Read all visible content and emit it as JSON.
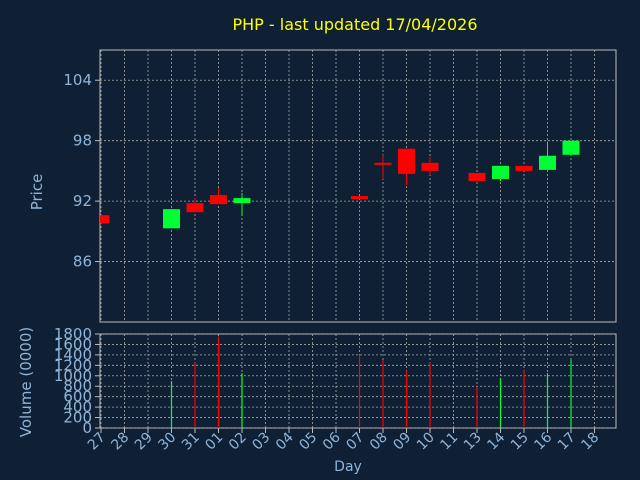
{
  "title": "PHP - last updated 17/04/2026",
  "colors": {
    "background": "#0f2035",
    "title": "#ffff00",
    "axis_text": "#8fb4d8",
    "axis_label": "#8fb4d8",
    "grid": "#aaaaaa",
    "frame": "#bbbbbb",
    "up": "#00ff33",
    "down": "#ff0000"
  },
  "chart_data": [
    {
      "type": "candlestick",
      "ylabel": "Price",
      "ylim": [
        80,
        107
      ],
      "yticks": [
        86,
        92,
        98,
        104
      ],
      "grid": true,
      "categories": [
        "27",
        "28",
        "29",
        "30",
        "31",
        "01",
        "02",
        "03",
        "04",
        "05",
        "06",
        "07",
        "08",
        "09",
        "10",
        "11",
        "13",
        "14",
        "15",
        "16",
        "17",
        "18"
      ],
      "candles": [
        {
          "x": "27",
          "open": 90.6,
          "high": 90.6,
          "low": 89.8,
          "close": 89.8
        },
        {
          "x": "30",
          "open": 89.3,
          "high": 91.2,
          "low": 89.3,
          "close": 91.2
        },
        {
          "x": "31",
          "open": 91.8,
          "high": 92.3,
          "low": 90.9,
          "close": 90.9
        },
        {
          "x": "01",
          "open": 92.6,
          "high": 93.3,
          "low": 91.7,
          "close": 91.7
        },
        {
          "x": "02",
          "open": 91.8,
          "high": 92.8,
          "low": 90.6,
          "close": 92.3
        },
        {
          "x": "07",
          "open": 92.5,
          "high": 92.5,
          "low": 92.2,
          "close": 92.2
        },
        {
          "x": "08",
          "open": 95.8,
          "high": 96.6,
          "low": 94.2,
          "close": 95.6
        },
        {
          "x": "09",
          "open": 97.2,
          "high": 97.2,
          "low": 93.6,
          "close": 94.7
        },
        {
          "x": "10",
          "open": 95.8,
          "high": 96.4,
          "low": 94.6,
          "close": 95.0
        },
        {
          "x": "13",
          "open": 94.8,
          "high": 94.8,
          "low": 94.0,
          "close": 94.0
        },
        {
          "x": "14",
          "open": 94.2,
          "high": 95.5,
          "low": 94.0,
          "close": 95.5
        },
        {
          "x": "15",
          "open": 95.5,
          "high": 95.5,
          "low": 95.0,
          "close": 95.0
        },
        {
          "x": "16",
          "open": 95.1,
          "high": 97.9,
          "low": 95.1,
          "close": 96.5
        },
        {
          "x": "17",
          "open": 96.6,
          "high": 98.0,
          "low": 96.6,
          "close": 98.0
        }
      ]
    },
    {
      "type": "bar",
      "xlabel": "Day",
      "ylabel": "Volume (0000)",
      "ylim": [
        0,
        1800
      ],
      "yticks": [
        0,
        200,
        400,
        600,
        800,
        1000,
        1200,
        1400,
        1600,
        1800
      ],
      "grid": true,
      "categories": [
        "27",
        "28",
        "29",
        "30",
        "31",
        "01",
        "02",
        "03",
        "04",
        "05",
        "06",
        "07",
        "08",
        "09",
        "10",
        "11",
        "13",
        "14",
        "15",
        "16",
        "17",
        "18"
      ],
      "bars": [
        {
          "x": "30",
          "value": 900,
          "direction": "up"
        },
        {
          "x": "31",
          "value": 1250,
          "direction": "down"
        },
        {
          "x": "01",
          "value": 1750,
          "direction": "down"
        },
        {
          "x": "02",
          "value": 1050,
          "direction": "up"
        },
        {
          "x": "07",
          "value": 1400,
          "direction": "down"
        },
        {
          "x": "08",
          "value": 1300,
          "direction": "down"
        },
        {
          "x": "09",
          "value": 1100,
          "direction": "down"
        },
        {
          "x": "10",
          "value": 1250,
          "direction": "down"
        },
        {
          "x": "13",
          "value": 800,
          "direction": "down"
        },
        {
          "x": "14",
          "value": 950,
          "direction": "up"
        },
        {
          "x": "15",
          "value": 1100,
          "direction": "down"
        },
        {
          "x": "16",
          "value": 1050,
          "direction": "up"
        },
        {
          "x": "17",
          "value": 1300,
          "direction": "up"
        }
      ]
    }
  ]
}
